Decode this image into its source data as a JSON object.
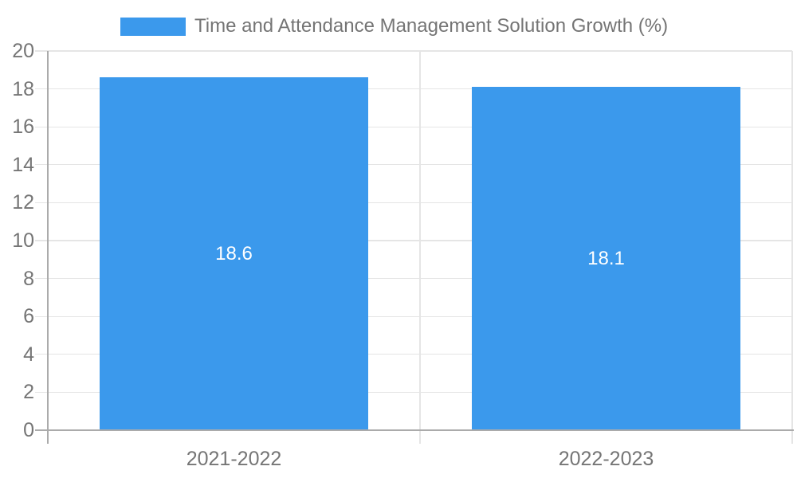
{
  "legend": {
    "label": "Time and Attendance Management Solution Growth (%)"
  },
  "chart_data": {
    "type": "bar",
    "title": "Time and Attendance Management Solution Growth (%)",
    "categories": [
      "2021-2022",
      "2022-2023"
    ],
    "values": [
      18.6,
      18.1
    ],
    "value_labels": [
      "18.6",
      "18.1"
    ],
    "xlabel": "",
    "ylabel": "",
    "ylim": [
      0,
      20
    ],
    "yticks": [
      0,
      2,
      4,
      6,
      8,
      10,
      12,
      14,
      16,
      18,
      20
    ],
    "grid": true,
    "legend_position": "top-left",
    "colors": {
      "bar": "#3b99ec",
      "axis_label": "#757575",
      "grid_line": "#e5e5e5",
      "axis_line": "#ababab",
      "value_label": "#ffffff",
      "background": "#ffffff"
    }
  }
}
